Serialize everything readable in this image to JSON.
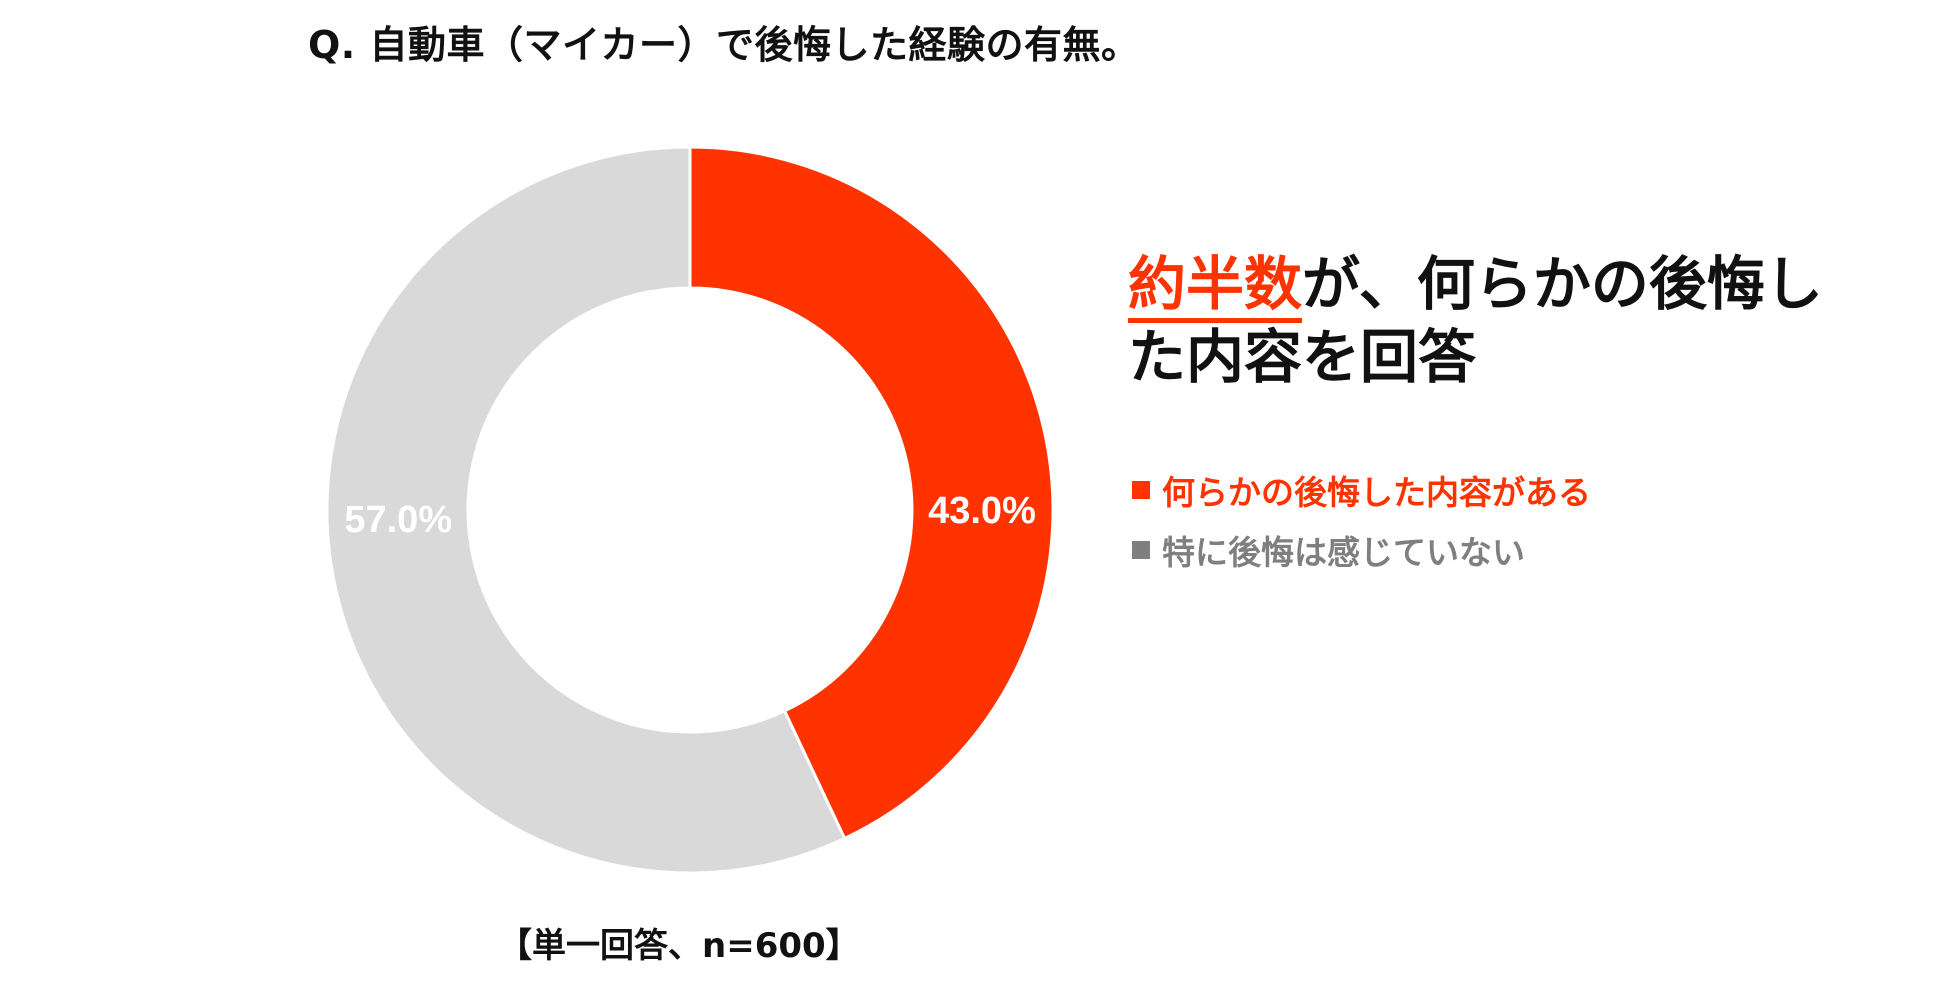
{
  "header": {
    "title": "Q. 自動車（マイカー）で後悔した経験の有無。"
  },
  "headline": {
    "highlight": "約半数",
    "line1_rest": "が、何らかの後悔し",
    "line2": "た内容を回答"
  },
  "legend": {
    "items": [
      {
        "label": "何らかの後悔した内容がある",
        "color": "#ff3300"
      },
      {
        "label": "特に後悔は感じていない",
        "color": "#7f7f7f"
      }
    ]
  },
  "footnote": "【単一回答、n=600】",
  "chart_data": {
    "type": "pie",
    "style": "donut",
    "title": "Q. 自動車（マイカー）で後悔した経験の有無。",
    "categories": [
      "何らかの後悔した内容がある",
      "特に後悔は感じていない"
    ],
    "values": [
      43.0,
      57.0
    ],
    "data_labels": [
      "43.0%",
      "57.0%"
    ],
    "colors": [
      "#ff3300",
      "#d9d9d9"
    ],
    "label_colors": [
      "#ffffff",
      "#ffffff"
    ],
    "legend_position": "right",
    "start_angle_deg": 0,
    "direction": "clockwise"
  }
}
